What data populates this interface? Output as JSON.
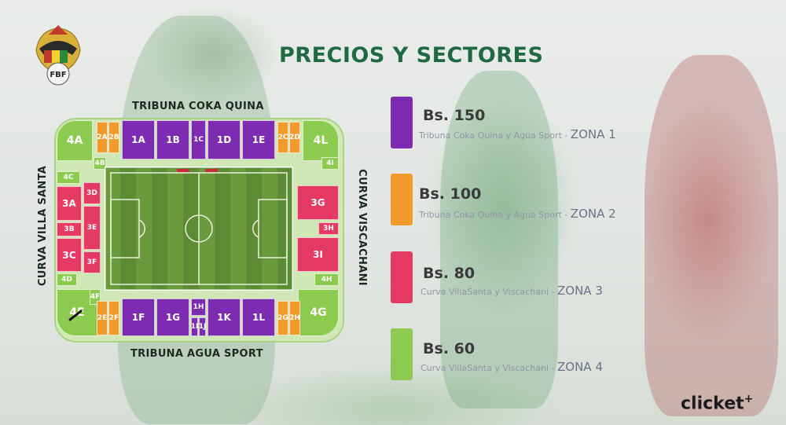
{
  "title": "PRECIOS Y SECTORES",
  "logo": {
    "text": "FBF"
  },
  "stadium": {
    "top_stand": "TRIBUNA COKA QUINA",
    "bottom_stand": "TRIBUNA AGUA SPORT",
    "left_curve": "CURVA VILLA SANTA",
    "right_curve": "CURVA VISCACHANI",
    "sectors": {
      "s1A": "1A",
      "s1B": "1B",
      "s1C": "1C",
      "s1D": "1D",
      "s1E": "1E",
      "s2A": "2A",
      "s2B": "2B",
      "s2C": "2C",
      "s2D": "2D",
      "s1F": "1F",
      "s1G": "1G",
      "s1H": "1H",
      "s1I": "1I",
      "s1J": "1J",
      "s1K": "1K",
      "s1L": "1L",
      "s2E": "2E",
      "s2F": "2F",
      "s2G": "2G",
      "s2H": "2H",
      "s3A": "3A",
      "s3B": "3B",
      "s3C": "3C",
      "s3D": "3D",
      "s3E": "3E",
      "s3F": "3F",
      "s3G": "3G",
      "s3H": "3H",
      "s3I": "3I",
      "s4A": "4A",
      "s4B": "4B",
      "s4C": "4C",
      "s4D": "4D",
      "s4E": "4E",
      "s4F": "4F",
      "s4G": "4G",
      "s4H": "4H",
      "s4I": "4I",
      "s4L": "4L"
    }
  },
  "prices": [
    {
      "amount": "Bs. 150",
      "desc": "Tribuna Coka Quina y Agua Sport",
      "zone": "ZONA 1",
      "color": "#7d2bb0"
    },
    {
      "amount": "Bs. 100",
      "desc": "Tribuna Coka Quina y Agua Sport",
      "zone": "ZONA 2",
      "color": "#f39a2c"
    },
    {
      "amount": "Bs. 80",
      "desc": "Curva VillaSanta y Viscachani",
      "zone": "ZONA 3",
      "color": "#e43a63"
    },
    {
      "amount": "Bs. 60",
      "desc": "Curva VillaSanta y Viscachani",
      "zone": "ZONA 4",
      "color": "#8ccb4f"
    }
  ],
  "brand": {
    "name": "clicket",
    "mark": "+"
  }
}
